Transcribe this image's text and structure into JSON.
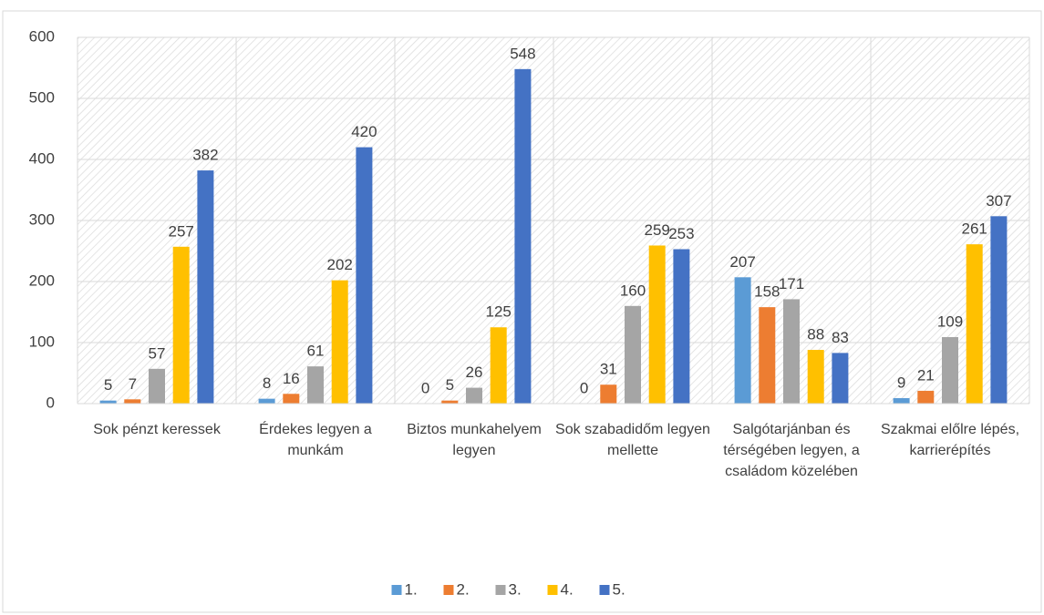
{
  "chart_data": {
    "type": "bar",
    "categories": [
      "Sok pénzt keressek",
      "Érdekes legyen a munkám",
      "Biztos munkahelyem legyen",
      "Sok szabadidőm legyen mellette",
      "Salgótarjánban és térségében legyen, a családom közelében",
      "Szakmai előlre lépés, karrierépítés"
    ],
    "series": [
      {
        "name": "1.",
        "color": "#5b9bd5",
        "values": [
          5,
          8,
          0,
          0,
          207,
          9
        ]
      },
      {
        "name": "2.",
        "color": "#ed7d31",
        "values": [
          7,
          16,
          5,
          31,
          158,
          21
        ]
      },
      {
        "name": "3.",
        "color": "#a5a5a5",
        "values": [
          57,
          61,
          26,
          160,
          171,
          109
        ]
      },
      {
        "name": "4.",
        "color": "#ffc000",
        "values": [
          257,
          202,
          125,
          259,
          88,
          261
        ]
      },
      {
        "name": "5.",
        "color": "#4472c4",
        "values": [
          382,
          420,
          548,
          253,
          83,
          307
        ]
      }
    ],
    "ylim": [
      0,
      600
    ],
    "yticks": [
      0,
      100,
      200,
      300,
      400,
      500,
      600
    ],
    "grid": true,
    "legend": "bottom"
  }
}
